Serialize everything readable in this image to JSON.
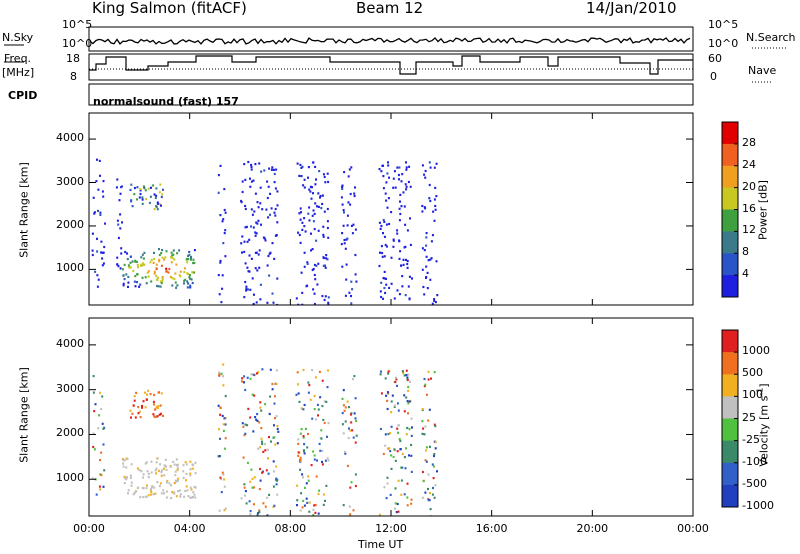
{
  "header": {
    "station": "King Salmon (fitACF)",
    "beam": "Beam 12",
    "date": "14/Jan/2010"
  },
  "summary": {
    "nsky_label": "N.Sky",
    "nsearch_label": "N.Search",
    "freq_label": "Freq.",
    "freq_unit": "[MHz]",
    "nave_label": "Nave",
    "cpid_label": "CPID",
    "cpid_value": "normalsound (fast) 157",
    "noise_ticks": [
      "10^5",
      "10^0"
    ],
    "noise_ticks_right": [
      "10^5",
      "10^0"
    ],
    "freq_ticks": [
      "18",
      "8"
    ],
    "nave_ticks": [
      "60",
      "0"
    ]
  },
  "colors": {
    "frame": "#000000",
    "power_scale": [
      "#1f1fe0",
      "#2a55c8",
      "#3a7a8a",
      "#3fa040",
      "#c8c820",
      "#f0a020",
      "#f06020",
      "#e00000"
    ],
    "velocity_scale": [
      "#2040c0",
      "#3060c8",
      "#3a8a6a",
      "#50c040",
      "#c0c0c0",
      "#f0b020",
      "#f07020",
      "#e02020"
    ]
  },
  "chart_data": [
    {
      "type": "heatmap",
      "panel": "power",
      "ylabel": "Slant Range [km]",
      "xlabel": "",
      "x_ticks": [
        "00:00",
        "04:00",
        "08:00",
        "12:00",
        "16:00",
        "20:00",
        "00:00"
      ],
      "xlim_hours": [
        0,
        24
      ],
      "y_ticks": [
        1000,
        2000,
        3000,
        4000
      ],
      "ylim": [
        180,
        4600
      ],
      "colorbar": {
        "label": "Power [dB]",
        "ticks": [
          "28",
          "24",
          "20",
          "16",
          "12",
          "8",
          "4"
        ]
      },
      "echo_regions": [
        {
          "t0": 0.1,
          "t1": 0.6,
          "r0": 600,
          "r1": 3600,
          "level": "low"
        },
        {
          "t0": 1.0,
          "t1": 1.3,
          "r0": 900,
          "r1": 3500,
          "level": "low"
        },
        {
          "t0": 1.6,
          "t1": 2.9,
          "r0": 2400,
          "r1": 3000,
          "level": "mid"
        },
        {
          "t0": 1.3,
          "t1": 4.2,
          "r0": 600,
          "r1": 1500,
          "level": "high"
        },
        {
          "t0": 5.1,
          "t1": 5.4,
          "r0": 200,
          "r1": 3600,
          "level": "low"
        },
        {
          "t0": 6.0,
          "t1": 7.5,
          "r0": 200,
          "r1": 3500,
          "level": "low"
        },
        {
          "t0": 8.2,
          "t1": 9.5,
          "r0": 200,
          "r1": 3500,
          "level": "low"
        },
        {
          "t0": 10.0,
          "t1": 10.6,
          "r0": 200,
          "r1": 3400,
          "level": "low"
        },
        {
          "t0": 11.5,
          "t1": 12.8,
          "r0": 200,
          "r1": 3500,
          "level": "low"
        },
        {
          "t0": 13.2,
          "t1": 13.8,
          "r0": 200,
          "r1": 3500,
          "level": "low"
        }
      ]
    },
    {
      "type": "heatmap",
      "panel": "velocity",
      "ylabel": "Slant Range [km]",
      "xlabel": "Time UT",
      "x_ticks": [
        "00:00",
        "04:00",
        "08:00",
        "12:00",
        "16:00",
        "20:00",
        "00:00"
      ],
      "xlim_hours": [
        0,
        24
      ],
      "y_ticks": [
        1000,
        2000,
        3000,
        4000
      ],
      "ylim": [
        180,
        4600
      ],
      "colorbar": {
        "label": "Velocity [m s",
        "label_exp": "-1",
        "label_close": "]",
        "ticks": [
          "1000",
          "500",
          "100",
          "25",
          "-25",
          "-100",
          "-500",
          "-1000"
        ]
      },
      "echo_regions": [
        {
          "t0": 0.1,
          "t1": 0.6,
          "r0": 600,
          "r1": 3600,
          "level": "mixed"
        },
        {
          "t0": 1.6,
          "t1": 2.9,
          "r0": 2400,
          "r1": 3000,
          "level": "orange"
        },
        {
          "t0": 1.3,
          "t1": 4.2,
          "r0": 600,
          "r1": 1500,
          "level": "grey"
        },
        {
          "t0": 5.1,
          "t1": 5.4,
          "r0": 200,
          "r1": 3600,
          "level": "mixed"
        },
        {
          "t0": 6.0,
          "t1": 7.5,
          "r0": 200,
          "r1": 3500,
          "level": "mixed"
        },
        {
          "t0": 8.2,
          "t1": 9.5,
          "r0": 200,
          "r1": 3500,
          "level": "mixed"
        },
        {
          "t0": 10.0,
          "t1": 10.6,
          "r0": 200,
          "r1": 3400,
          "level": "mixed"
        },
        {
          "t0": 11.5,
          "t1": 12.8,
          "r0": 200,
          "r1": 3500,
          "level": "mixed"
        },
        {
          "t0": 13.2,
          "t1": 13.8,
          "r0": 200,
          "r1": 3500,
          "level": "mixed"
        }
      ]
    }
  ]
}
